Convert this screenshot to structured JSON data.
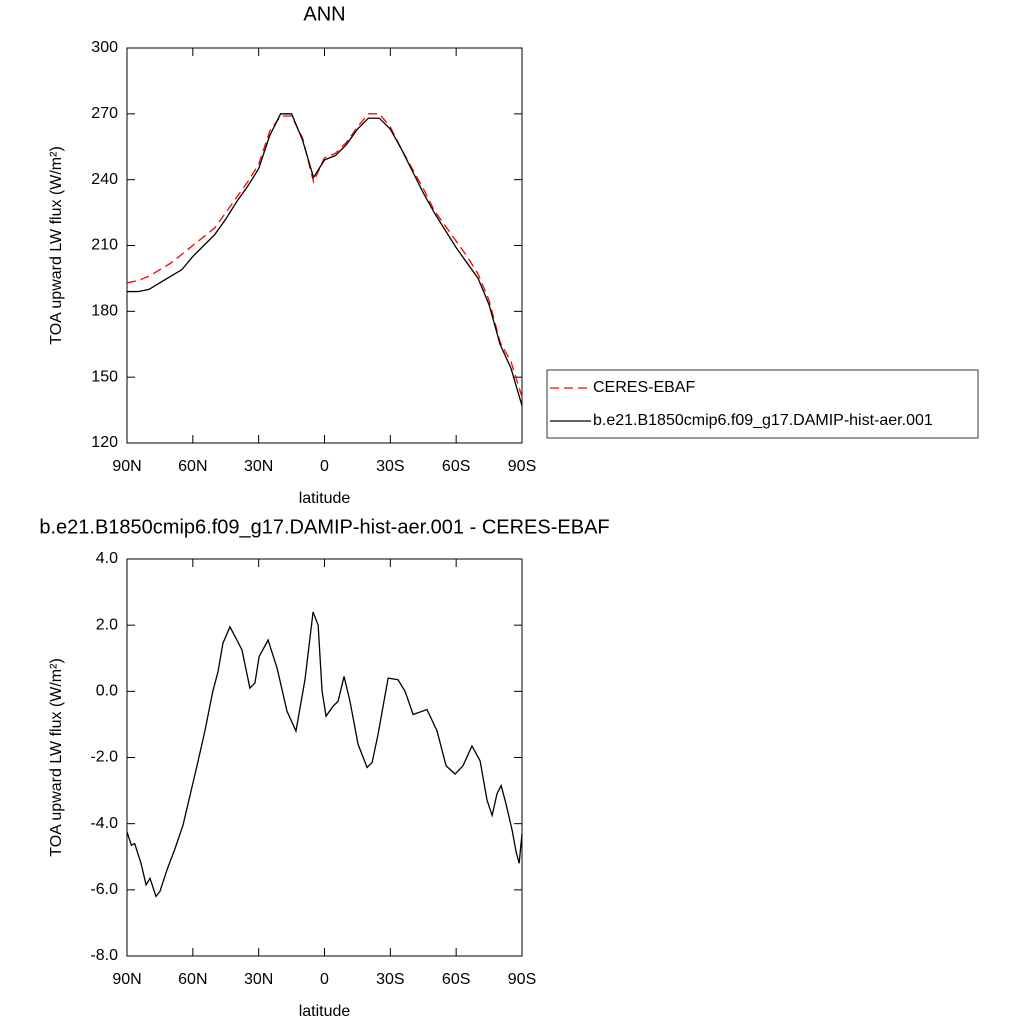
{
  "chart_data": [
    {
      "type": "line",
      "title": "ANN",
      "x_label": "latitude",
      "y_label": "TOA upward LW flux (W/m²)",
      "x": [
        90,
        85,
        80,
        75,
        70,
        65,
        60,
        55,
        50,
        45,
        40,
        35,
        30,
        25,
        20,
        15,
        10,
        5,
        0,
        -5,
        -10,
        -15,
        -20,
        -25,
        -30,
        -35,
        -40,
        -45,
        -50,
        -55,
        -60,
        -65,
        -70,
        -75,
        -80,
        -85,
        -90
      ],
      "series": [
        {
          "name": "CERES-EBAF",
          "color": "#ff0000",
          "line_style": "dashed",
          "values": [
            193,
            194,
            196,
            199,
            202,
            206,
            210,
            214,
            218,
            225,
            232,
            239,
            247,
            262,
            269,
            269,
            259,
            239,
            250,
            252,
            257,
            264,
            270,
            270,
            264,
            254,
            245,
            236,
            226,
            219,
            212,
            205,
            197,
            185,
            166,
            157,
            141
          ]
        },
        {
          "name": "b.e21.B1850cmip6.f09_g17.DAMIP-hist-aer.001",
          "color": "#000000",
          "line_style": "solid",
          "values": [
            189,
            189,
            190,
            193,
            196,
            199,
            205,
            210,
            215,
            222,
            230,
            237,
            245,
            260,
            270,
            270,
            258,
            241,
            249,
            251,
            256,
            263,
            268,
            268,
            263,
            254,
            244,
            234,
            225,
            217,
            209,
            202,
            195,
            183,
            165,
            154,
            137
          ]
        }
      ],
      "xlim": [
        90,
        -90
      ],
      "xticks": [
        {
          "value": 90,
          "label": "90N"
        },
        {
          "value": 60,
          "label": "60N"
        },
        {
          "value": 30,
          "label": "30N"
        },
        0,
        {
          "value": -30,
          "label": "30S"
        },
        {
          "value": -60,
          "label": "60S"
        },
        {
          "value": -90,
          "label": "90S"
        }
      ],
      "ylim": [
        120,
        300
      ],
      "yticks": [
        120,
        150,
        180,
        210,
        240,
        270,
        300
      ],
      "legend": "right"
    },
    {
      "type": "line",
      "title": "b.e21.B1850cmip6.f09_g17.DAMIP-hist-aer.001 - CERES-EBAF",
      "x_label": "latitude",
      "y_label": "TOA upward LW flux (W/m²)",
      "x": [
        90,
        88,
        86.5,
        83.6,
        81.3,
        79.5,
        76.8,
        75,
        71.8,
        68.1,
        64.5,
        61.3,
        58.1,
        54.5,
        50.9,
        48.5,
        46.3,
        43.1,
        39.9,
        37.6,
        34,
        31.7,
        29.8,
        25.7,
        21.6,
        17.1,
        13,
        8.9,
        5.2,
        2.9,
        1.1,
        -0.7,
        -3.9,
        -6.2,
        -8.9,
        -11.6,
        -15.3,
        -19.4,
        -21.7,
        -24.4,
        -29,
        -33.5,
        -36.7,
        -40.4,
        -46.7,
        -51.3,
        -55.4,
        -59.5,
        -63.1,
        -67.2,
        -70.9,
        -74.1,
        -76.4,
        -78.6,
        -80.5,
        -82.7,
        -85.5,
        -87.3,
        -88.7,
        -90
      ],
      "series": [
        {
          "color": "#000000",
          "line_style": "solid",
          "values": [
            -4.25,
            -4.65,
            -4.6,
            -5.2,
            -5.85,
            -5.65,
            -6.2,
            -6.05,
            -5.4,
            -4.75,
            -4.05,
            -3.15,
            -2.25,
            -1.2,
            0.0,
            0.6,
            1.45,
            1.95,
            1.55,
            1.25,
            0.1,
            0.25,
            1.05,
            1.55,
            0.7,
            -0.6,
            -1.2,
            0.35,
            2.4,
            2.0,
            0.0,
            -0.75,
            -0.45,
            -0.3,
            0.45,
            -0.3,
            -1.6,
            -2.3,
            -2.15,
            -1.3,
            0.4,
            0.35,
            0.0,
            -0.7,
            -0.55,
            -1.2,
            -2.25,
            -2.5,
            -2.25,
            -1.65,
            -2.1,
            -3.3,
            -3.75,
            -3.1,
            -2.85,
            -3.4,
            -4.2,
            -4.85,
            -5.2,
            -4.3
          ]
        }
      ],
      "xlim": [
        90,
        -90
      ],
      "xticks": [
        {
          "value": 90,
          "label": "90N"
        },
        {
          "value": 60,
          "label": "60N"
        },
        {
          "value": 30,
          "label": "30N"
        },
        0,
        {
          "value": -30,
          "label": "30S"
        },
        {
          "value": -60,
          "label": "60S"
        },
        {
          "value": -90,
          "label": "90S"
        }
      ],
      "ylim": [
        -8,
        4
      ],
      "yticks": [
        {
          "value": -8,
          "label": "-8.0"
        },
        {
          "value": -6,
          "label": "-6.0"
        },
        {
          "value": -4,
          "label": "-4.0"
        },
        {
          "value": -2,
          "label": "-2.0"
        },
        {
          "value": 0,
          "label": "0.0"
        },
        {
          "value": 2,
          "label": "2.0"
        },
        {
          "value": 4,
          "label": "4.0"
        }
      ]
    }
  ]
}
